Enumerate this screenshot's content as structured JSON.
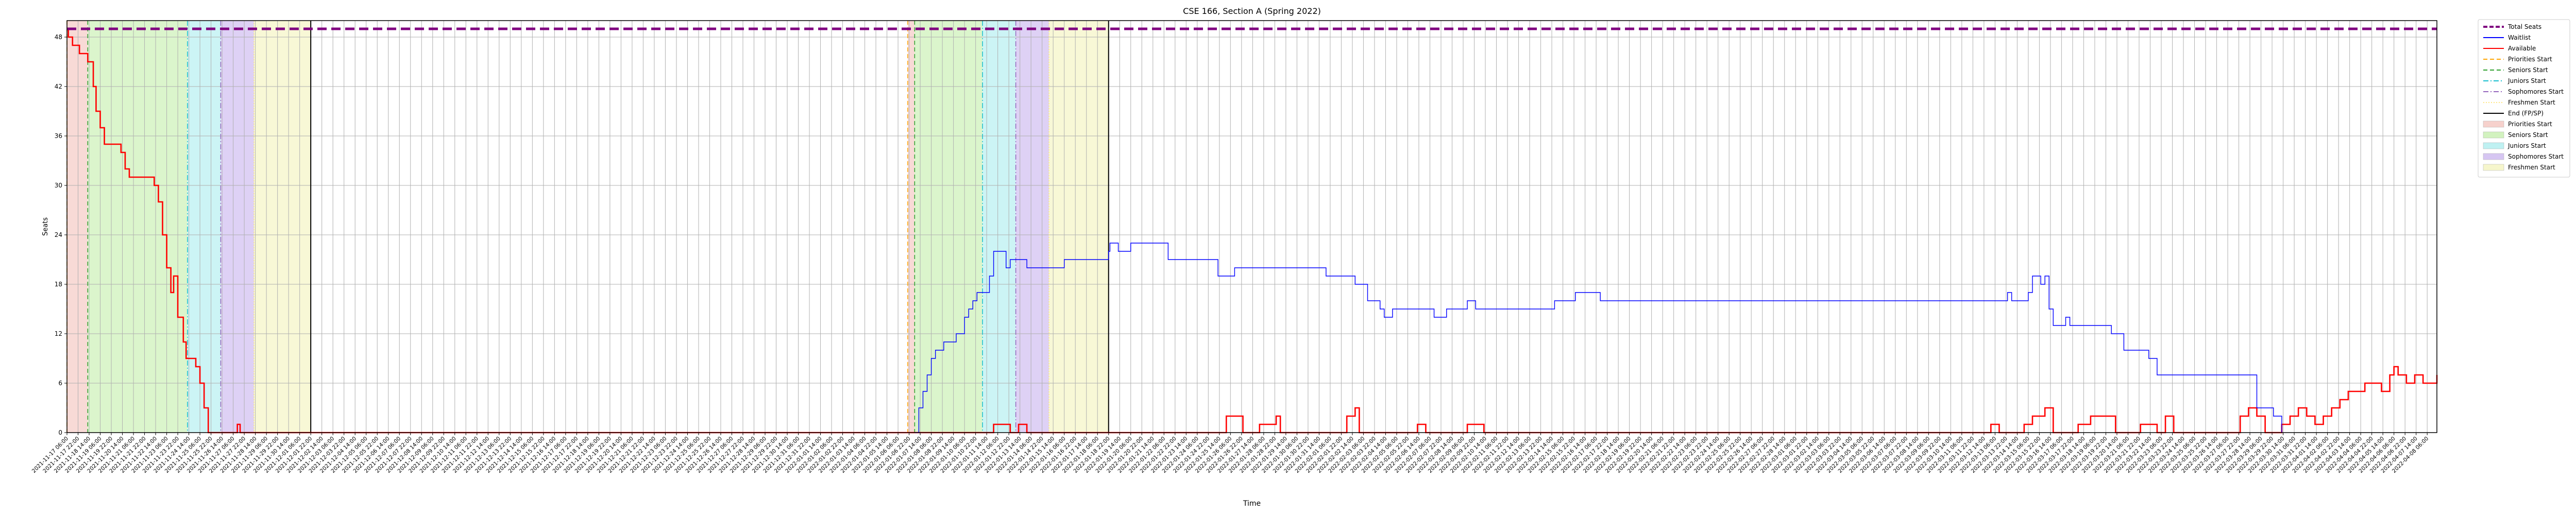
{
  "chart_data": {
    "type": "line",
    "title": "CSE 166, Section A (Spring 2022)",
    "xlabel": "Time",
    "ylabel": "Seats",
    "ylim": [
      0,
      50
    ],
    "yticks": [
      0,
      6,
      12,
      18,
      24,
      30,
      36,
      42,
      48
    ],
    "x_start": "2021-11-17 06:00",
    "x_end": "2022-04-08 20:00",
    "grid": true,
    "legend_placement": "outside-right",
    "legend": [
      {
        "label": "Total Seats",
        "kind": "line",
        "color": "#800080",
        "style": "dashed-thick"
      },
      {
        "label": "Waitlist",
        "kind": "line",
        "color": "#0000ff",
        "style": "solid"
      },
      {
        "label": "Available",
        "kind": "line",
        "color": "#ff0000",
        "style": "solid"
      },
      {
        "label": "Priorities Start",
        "kind": "line",
        "color": "#ffa500",
        "style": "dashed"
      },
      {
        "label": "Seniors Start",
        "kind": "line",
        "color": "#2ca02c",
        "style": "dashed"
      },
      {
        "label": "Juniors Start",
        "kind": "line",
        "color": "#17becf",
        "style": "dashdot"
      },
      {
        "label": "Sophomores Start",
        "kind": "line",
        "color": "#9467bd",
        "style": "dashdot"
      },
      {
        "label": "Freshmen Start",
        "kind": "line",
        "color": "#ffe680",
        "style": "dotted"
      },
      {
        "label": "End (FP/SP)",
        "kind": "line",
        "color": "#000000",
        "style": "solid"
      },
      {
        "label": "Priorities Start",
        "kind": "patch",
        "color": "#f4c6c0"
      },
      {
        "label": "Seniors Start",
        "kind": "patch",
        "color": "#c8f0b0"
      },
      {
        "label": "Juniors Start",
        "kind": "patch",
        "color": "#b0eef0"
      },
      {
        "label": "Sophomores Start",
        "kind": "patch",
        "color": "#cdb8f0"
      },
      {
        "label": "Freshmen Start",
        "kind": "patch",
        "color": "#f4f4c0"
      }
    ],
    "periods": [
      {
        "type": "Priorities Start",
        "start": "2021-11-17 06:00",
        "end": "2021-11-18 12:00"
      },
      {
        "type": "Seniors Start",
        "start": "2021-11-18 12:00",
        "end": "2021-11-24 12:00"
      },
      {
        "type": "Juniors Start",
        "start": "2021-11-24 12:00",
        "end": "2021-11-26 12:00"
      },
      {
        "type": "Sophomores Start",
        "start": "2021-11-26 12:00",
        "end": "2021-11-28 12:00"
      },
      {
        "type": "Freshmen Start",
        "start": "2021-11-28 12:00",
        "end": "2021-12-01 22:00"
      },
      {
        "type": "Priorities Start",
        "start": "2022-01-06 20:00",
        "end": "2022-01-07 06:00"
      },
      {
        "type": "Seniors Start",
        "start": "2022-01-07 06:00",
        "end": "2022-01-11 08:00"
      },
      {
        "type": "Juniors Start",
        "start": "2022-01-11 08:00",
        "end": "2022-01-13 08:00"
      },
      {
        "type": "Sophomores Start",
        "start": "2022-01-13 08:00",
        "end": "2022-01-15 08:00"
      },
      {
        "type": "Freshmen Start",
        "start": "2022-01-15 08:00",
        "end": "2022-01-18 22:00"
      }
    ],
    "end_lines": [
      "2021-12-01 22:00",
      "2022-01-18 22:00"
    ],
    "total_seats": 49,
    "series": [
      {
        "name": "Available",
        "color": "#ff0000",
        "points": [
          [
            "2021-11-17 06:00",
            49
          ],
          [
            "2021-11-17 08:00",
            48
          ],
          [
            "2021-11-17 14:00",
            47
          ],
          [
            "2021-11-18 00:00",
            46
          ],
          [
            "2021-11-18 12:00",
            45
          ],
          [
            "2021-11-18 20:00",
            42
          ],
          [
            "2021-11-19 00:00",
            39
          ],
          [
            "2021-11-19 06:00",
            37
          ],
          [
            "2021-11-19 12:00",
            35
          ],
          [
            "2021-11-20 12:00",
            34
          ],
          [
            "2021-11-20 18:00",
            32
          ],
          [
            "2021-11-21 00:00",
            31
          ],
          [
            "2021-11-22 12:00",
            30
          ],
          [
            "2021-11-22 18:00",
            28
          ],
          [
            "2021-11-23 00:00",
            24
          ],
          [
            "2021-11-23 06:00",
            20
          ],
          [
            "2021-11-23 12:00",
            17
          ],
          [
            "2021-11-23 16:00",
            19
          ],
          [
            "2021-11-23 22:00",
            14
          ],
          [
            "2021-11-24 06:00",
            11
          ],
          [
            "2021-11-24 10:00",
            9
          ],
          [
            "2021-11-25 00:00",
            8
          ],
          [
            "2021-11-25 06:00",
            6
          ],
          [
            "2021-11-25 12:00",
            3
          ],
          [
            "2021-11-25 18:00",
            0
          ],
          [
            "2021-11-27 12:00",
            1
          ],
          [
            "2021-11-27 16:00",
            0
          ],
          [
            "2022-01-12 00:00",
            1
          ],
          [
            "2022-01-13 00:00",
            0
          ],
          [
            "2022-01-13 12:00",
            1
          ],
          [
            "2022-01-14 00:00",
            0
          ],
          [
            "2022-01-26 00:00",
            2
          ],
          [
            "2022-01-27 00:00",
            0
          ],
          [
            "2022-01-28 00:00",
            1
          ],
          [
            "2022-01-29 00:00",
            2
          ],
          [
            "2022-01-29 06:00",
            0
          ],
          [
            "2022-02-02 06:00",
            2
          ],
          [
            "2022-02-02 18:00",
            3
          ],
          [
            "2022-02-03 00:00",
            0
          ],
          [
            "2022-02-06 12:00",
            1
          ],
          [
            "2022-02-07 00:00",
            0
          ],
          [
            "2022-02-09 12:00",
            1
          ],
          [
            "2022-02-10 12:00",
            0
          ],
          [
            "2022-03-13 00:00",
            1
          ],
          [
            "2022-03-13 12:00",
            0
          ],
          [
            "2022-03-15 00:00",
            1
          ],
          [
            "2022-03-15 12:00",
            2
          ],
          [
            "2022-03-16 06:00",
            3
          ],
          [
            "2022-03-16 18:00",
            0
          ],
          [
            "2022-03-18 06:00",
            1
          ],
          [
            "2022-03-19 00:00",
            2
          ],
          [
            "2022-03-20 12:00",
            0
          ],
          [
            "2022-03-22 00:00",
            1
          ],
          [
            "2022-03-23 00:00",
            0
          ],
          [
            "2022-03-23 12:00",
            2
          ],
          [
            "2022-03-24 00:00",
            0
          ],
          [
            "2022-03-28 00:00",
            2
          ],
          [
            "2022-03-28 12:00",
            3
          ],
          [
            "2022-03-29 00:00",
            2
          ],
          [
            "2022-03-29 12:00",
            0
          ],
          [
            "2022-03-30 12:00",
            1
          ],
          [
            "2022-03-31 00:00",
            2
          ],
          [
            "2022-03-31 12:00",
            3
          ],
          [
            "2022-04-01 00:00",
            2
          ],
          [
            "2022-04-01 12:00",
            1
          ],
          [
            "2022-04-02 00:00",
            2
          ],
          [
            "2022-04-02 12:00",
            3
          ],
          [
            "2022-04-03 00:00",
            4
          ],
          [
            "2022-04-03 12:00",
            5
          ],
          [
            "2022-04-04 00:00",
            5
          ],
          [
            "2022-04-04 12:00",
            6
          ],
          [
            "2022-04-05 00:00",
            6
          ],
          [
            "2022-04-05 12:00",
            5
          ],
          [
            "2022-04-06 00:00",
            7
          ],
          [
            "2022-04-06 06:00",
            8
          ],
          [
            "2022-04-06 12:00",
            7
          ],
          [
            "2022-04-07 00:00",
            6
          ],
          [
            "2022-04-07 12:00",
            7
          ],
          [
            "2022-04-08 00:00",
            6
          ],
          [
            "2022-04-08 20:00",
            7
          ]
        ]
      },
      {
        "name": "Waitlist",
        "color": "#0000ff",
        "points": [
          [
            "2022-01-07 06:00",
            0
          ],
          [
            "2022-01-07 12:00",
            3
          ],
          [
            "2022-01-07 18:00",
            5
          ],
          [
            "2022-01-08 00:00",
            7
          ],
          [
            "2022-01-08 06:00",
            9
          ],
          [
            "2022-01-08 12:00",
            10
          ],
          [
            "2022-01-09 00:00",
            11
          ],
          [
            "2022-01-09 18:00",
            12
          ],
          [
            "2022-01-10 06:00",
            14
          ],
          [
            "2022-01-10 12:00",
            15
          ],
          [
            "2022-01-10 18:00",
            16
          ],
          [
            "2022-01-11 00:00",
            17
          ],
          [
            "2022-01-11 18:00",
            19
          ],
          [
            "2022-01-12 00:00",
            22
          ],
          [
            "2022-01-12 18:00",
            20
          ],
          [
            "2022-01-13 00:00",
            21
          ],
          [
            "2022-01-14 00:00",
            20
          ],
          [
            "2022-01-16 06:00",
            21
          ],
          [
            "2022-01-18 22:00",
            22
          ],
          [
            "2022-01-19 00:00",
            23
          ],
          [
            "2022-01-19 12:00",
            22
          ],
          [
            "2022-01-20 06:00",
            23
          ],
          [
            "2022-01-22 12:00",
            21
          ],
          [
            "2022-01-25 12:00",
            19
          ],
          [
            "2022-01-26 12:00",
            20
          ],
          [
            "2022-02-01 00:00",
            19
          ],
          [
            "2022-02-02 18:00",
            18
          ],
          [
            "2022-02-03 12:00",
            16
          ],
          [
            "2022-02-04 06:00",
            15
          ],
          [
            "2022-02-04 12:00",
            14
          ],
          [
            "2022-02-05 00:00",
            15
          ],
          [
            "2022-02-07 12:00",
            14
          ],
          [
            "2022-02-08 06:00",
            15
          ],
          [
            "2022-02-09 12:00",
            16
          ],
          [
            "2022-02-10 00:00",
            15
          ],
          [
            "2022-02-14 18:00",
            16
          ],
          [
            "2022-02-16 00:00",
            17
          ],
          [
            "2022-02-17 12:00",
            16
          ],
          [
            "2022-03-14 00:00",
            17
          ],
          [
            "2022-03-14 06:00",
            16
          ],
          [
            "2022-03-15 06:00",
            17
          ],
          [
            "2022-03-15 12:00",
            19
          ],
          [
            "2022-03-16 00:00",
            18
          ],
          [
            "2022-03-16 06:00",
            19
          ],
          [
            "2022-03-16 12:00",
            15
          ],
          [
            "2022-03-16 18:00",
            13
          ],
          [
            "2022-03-17 12:00",
            14
          ],
          [
            "2022-03-17 18:00",
            13
          ],
          [
            "2022-03-20 06:00",
            12
          ],
          [
            "2022-03-21 00:00",
            10
          ],
          [
            "2022-03-22 12:00",
            9
          ],
          [
            "2022-03-23 00:00",
            7
          ],
          [
            "2022-03-29 00:00",
            3
          ],
          [
            "2022-03-30 00:00",
            2
          ],
          [
            "2022-03-30 12:00",
            0
          ]
        ]
      }
    ]
  }
}
